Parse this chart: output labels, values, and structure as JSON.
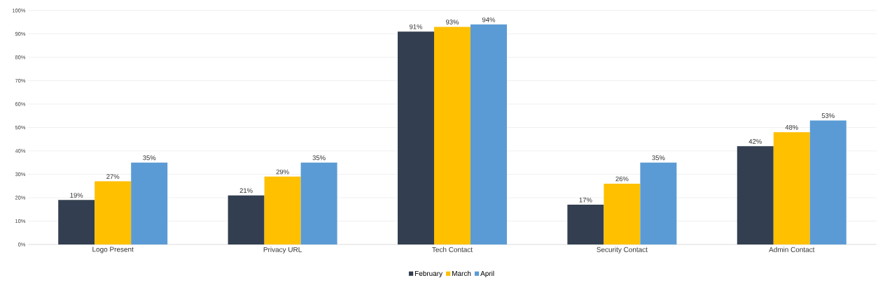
{
  "chart_data": {
    "type": "bar",
    "categories": [
      "Logo Present",
      "Privacy URL",
      "Tech Contact",
      "Security Contact",
      "Admin Contact"
    ],
    "series": [
      {
        "name": "February",
        "color": "#333f50",
        "values": [
          19,
          21,
          91,
          17,
          42
        ],
        "value_labels": [
          "19%",
          "21%",
          "91%",
          "17%",
          "42%"
        ]
      },
      {
        "name": "March",
        "color": "#ffc000",
        "values": [
          27,
          29,
          93,
          26,
          48
        ],
        "value_labels": [
          "27%",
          "29%",
          "93%",
          "26%",
          "48%"
        ]
      },
      {
        "name": "April",
        "color": "#5b9bd5",
        "values": [
          35,
          35,
          94,
          35,
          53
        ],
        "value_labels": [
          "35%",
          "35%",
          "94%",
          "35%",
          "53%"
        ]
      }
    ],
    "ylim": [
      0,
      100
    ],
    "yticks": [
      {
        "value": 0,
        "label": "0%"
      },
      {
        "value": 10,
        "label": "10%"
      },
      {
        "value": 20,
        "label": "20%"
      },
      {
        "value": 30,
        "label": "30%"
      },
      {
        "value": 40,
        "label": "40%"
      },
      {
        "value": 50,
        "label": "50%"
      },
      {
        "value": 60,
        "label": "60%"
      },
      {
        "value": 70,
        "label": "70%"
      },
      {
        "value": 80,
        "label": "80%"
      },
      {
        "value": 90,
        "label": "90%"
      },
      {
        "value": 100,
        "label": "100%"
      }
    ],
    "grid": "y",
    "legend": "bottom"
  }
}
